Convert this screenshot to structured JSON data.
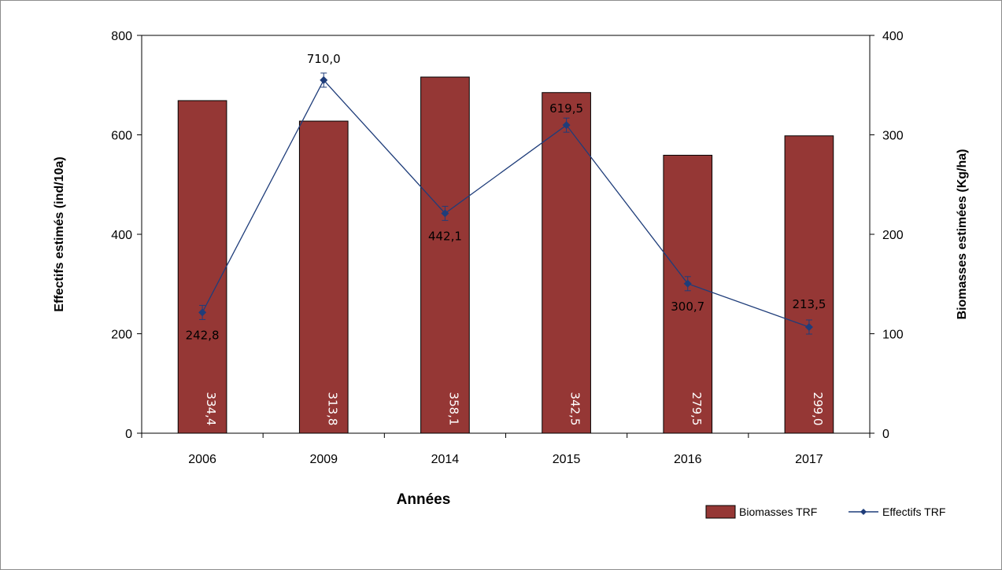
{
  "chart_data": {
    "type": "bar",
    "categories": [
      "2006",
      "2009",
      "2014",
      "2015",
      "2016",
      "2017"
    ],
    "series": [
      {
        "name": "Biomasses TRF",
        "type": "bar",
        "axis": "right",
        "color": "#953735",
        "values": [
          334.4,
          313.8,
          358.1,
          342.5,
          279.5,
          299.0
        ],
        "labels": [
          "334,4",
          "313,8",
          "358,1",
          "342,5",
          "279,5",
          "299,0"
        ]
      },
      {
        "name": "Effectifs TRF",
        "type": "line",
        "axis": "left",
        "color": "#1f3d7a",
        "values": [
          242.8,
          710.0,
          442.1,
          619.5,
          300.7,
          213.5
        ],
        "labels": [
          "242,8",
          "710,0",
          "442,1",
          "619,5",
          "300,7",
          "213,5"
        ]
      }
    ],
    "xlabel": "Années",
    "ylabel": "Effectifs estimés  (ind/10a)",
    "y2label": "Biomasses estimées  (Kg/ha)",
    "ylim": [
      0,
      800
    ],
    "y2lim": [
      0,
      400
    ],
    "yticks": [
      "0",
      "200",
      "400",
      "600",
      "800"
    ],
    "y2ticks": [
      "0",
      "100",
      "200",
      "300",
      "400"
    ],
    "grid": false,
    "legend_position": "bottom-right"
  }
}
